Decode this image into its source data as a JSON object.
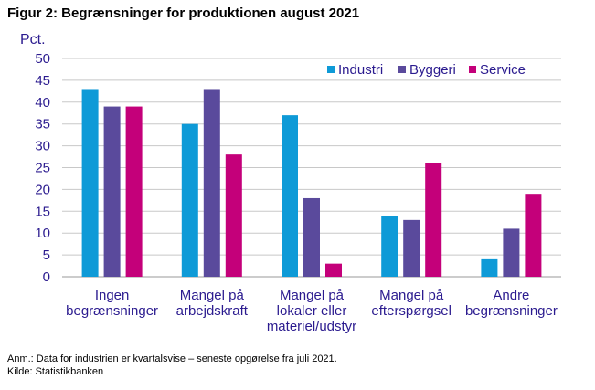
{
  "figure_title": "Figur 2: Begrænsninger for produktionen august 2021",
  "note": "Anm.: Data for industrien er kvartalsvise – seneste opgørelse fra juli 2021.",
  "source": "Kilde: Statistikbanken",
  "chart_data": {
    "type": "bar",
    "title": "",
    "ylabel": "Pct.",
    "xlabel": "",
    "ylim": [
      0,
      50
    ],
    "yticks": [
      0,
      5,
      10,
      15,
      20,
      25,
      30,
      35,
      40,
      45,
      50
    ],
    "grid": true,
    "legend_position": "top-right",
    "categories": [
      [
        "Ingen",
        "begrænsninger"
      ],
      [
        "Mangel på",
        "arbejdskraft"
      ],
      [
        "Mangel på",
        "lokaler eller",
        "materiel/udstyr"
      ],
      [
        "Mangel på",
        "efterspørgsel"
      ],
      [
        "Andre",
        "begrænsninger"
      ]
    ],
    "series": [
      {
        "name": "Industri",
        "color": "#0e9ad7",
        "values": [
          43,
          35,
          37,
          14,
          4
        ]
      },
      {
        "name": "Byggeri",
        "color": "#5a4a9c",
        "values": [
          39,
          43,
          18,
          13,
          11
        ]
      },
      {
        "name": "Service",
        "color": "#c4007a",
        "values": [
          39,
          28,
          3,
          26,
          19
        ]
      }
    ]
  }
}
